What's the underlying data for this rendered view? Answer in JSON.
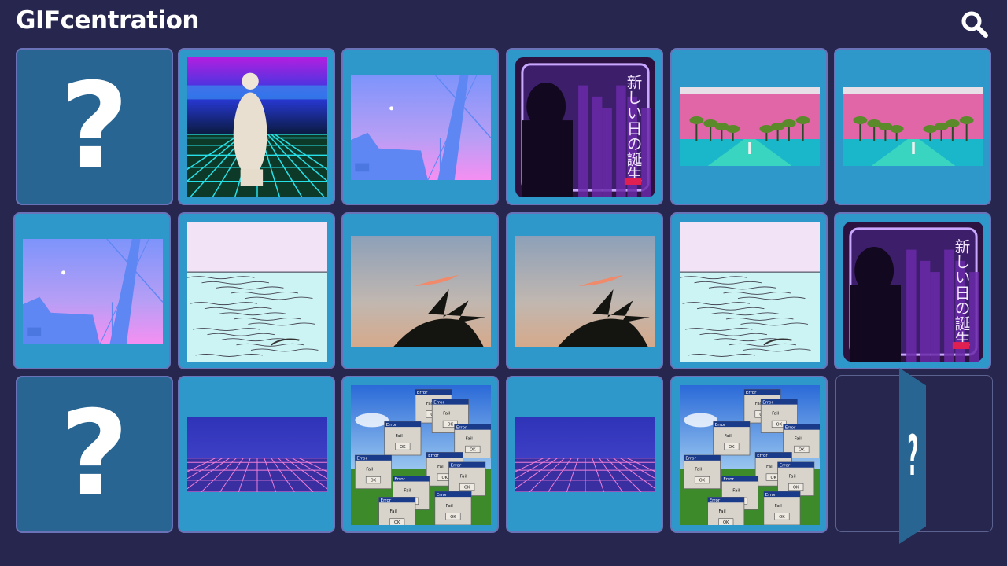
{
  "header": {
    "logo_text": "GIFcentration"
  },
  "icons": {
    "search": "search-icon",
    "card_back": "question-mark-icon"
  },
  "board": {
    "rows": 3,
    "columns": 6,
    "cards": [
      {
        "row": 1,
        "col": 1,
        "state": "face-down",
        "label": "?"
      },
      {
        "row": 1,
        "col": 2,
        "state": "face-up",
        "art": "statue-on-neon-grid"
      },
      {
        "row": 1,
        "col": 3,
        "state": "face-up",
        "art": "pink-sky-power-lines"
      },
      {
        "row": 1,
        "col": 4,
        "state": "face-up",
        "art": "neon-city-silhouette"
      },
      {
        "row": 1,
        "col": 5,
        "state": "face-up",
        "art": "palm-tree-road"
      },
      {
        "row": 1,
        "col": 6,
        "state": "face-up",
        "art": "palm-tree-road"
      },
      {
        "row": 2,
        "col": 1,
        "state": "face-up",
        "art": "pink-sky-power-lines"
      },
      {
        "row": 2,
        "col": 2,
        "state": "face-up",
        "art": "sketched-sea"
      },
      {
        "row": 2,
        "col": 3,
        "state": "face-up",
        "art": "sunset-palm"
      },
      {
        "row": 2,
        "col": 4,
        "state": "face-up",
        "art": "sunset-palm"
      },
      {
        "row": 2,
        "col": 5,
        "state": "face-up",
        "art": "sketched-sea"
      },
      {
        "row": 2,
        "col": 6,
        "state": "face-up",
        "art": "neon-city-silhouette"
      },
      {
        "row": 3,
        "col": 1,
        "state": "face-down",
        "label": "?"
      },
      {
        "row": 3,
        "col": 2,
        "state": "face-up",
        "art": "purple-grid-horizon"
      },
      {
        "row": 3,
        "col": 3,
        "state": "face-up",
        "art": "error-windows-cascade"
      },
      {
        "row": 3,
        "col": 4,
        "state": "face-up",
        "art": "purple-grid-horizon"
      },
      {
        "row": 3,
        "col": 5,
        "state": "face-up",
        "art": "error-windows-cascade"
      },
      {
        "row": 3,
        "col": 6,
        "state": "flipping",
        "label": "?"
      }
    ]
  },
  "art_text": {
    "city_sign": "新しい日の誕生",
    "error_title": "Error",
    "error_msg": "Fail",
    "error_ok": "OK"
  },
  "colors": {
    "background": "#26264e",
    "card_face": "#2f98cb",
    "card_back": "#296592",
    "card_border": "#6a73b8"
  }
}
